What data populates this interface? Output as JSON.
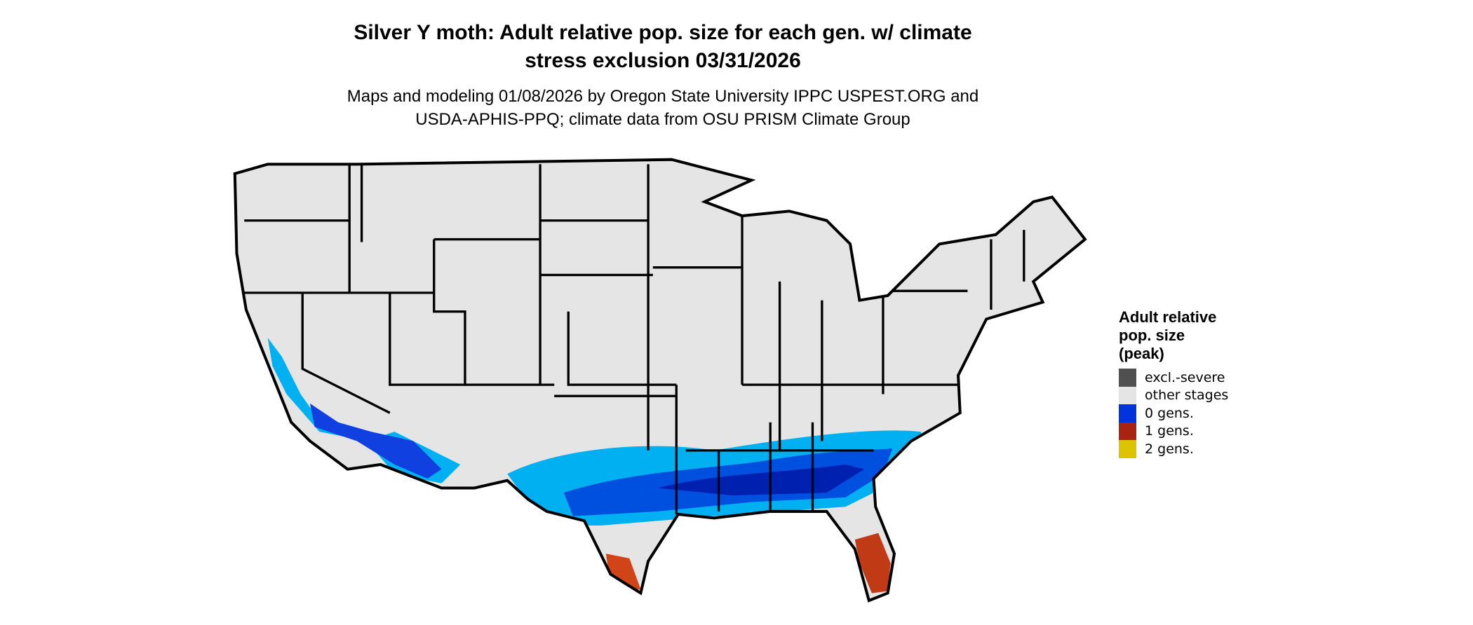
{
  "title": {
    "line1": "Silver Y moth: Adult relative pop. size for each gen. w/ climate",
    "line2": "stress exclusion 03/31/2026"
  },
  "subtitle": {
    "line1": "Maps and modeling 01/08/2026 by Oregon State University IPPC USPEST.ORG and",
    "line2": "USDA-APHIS-PPQ; climate data from OSU PRISM Climate Group"
  },
  "map": {
    "region": "Contiguous United States",
    "base_color": "#e5e5e5",
    "border_color": "#000000"
  },
  "legend": {
    "title_line1": "Adult relative",
    "title_line2": "pop. size",
    "title_line3": "(peak)",
    "items": [
      {
        "label": "excl.-severe",
        "color": "#505050"
      },
      {
        "label": "other stages",
        "color": "#e5e5e5"
      },
      {
        "label": "0 gens.",
        "color": "#0033dd"
      },
      {
        "label": "1 gens.",
        "color": "#aa2211"
      },
      {
        "label": "2 gens.",
        "color": "#ddc400"
      }
    ]
  }
}
